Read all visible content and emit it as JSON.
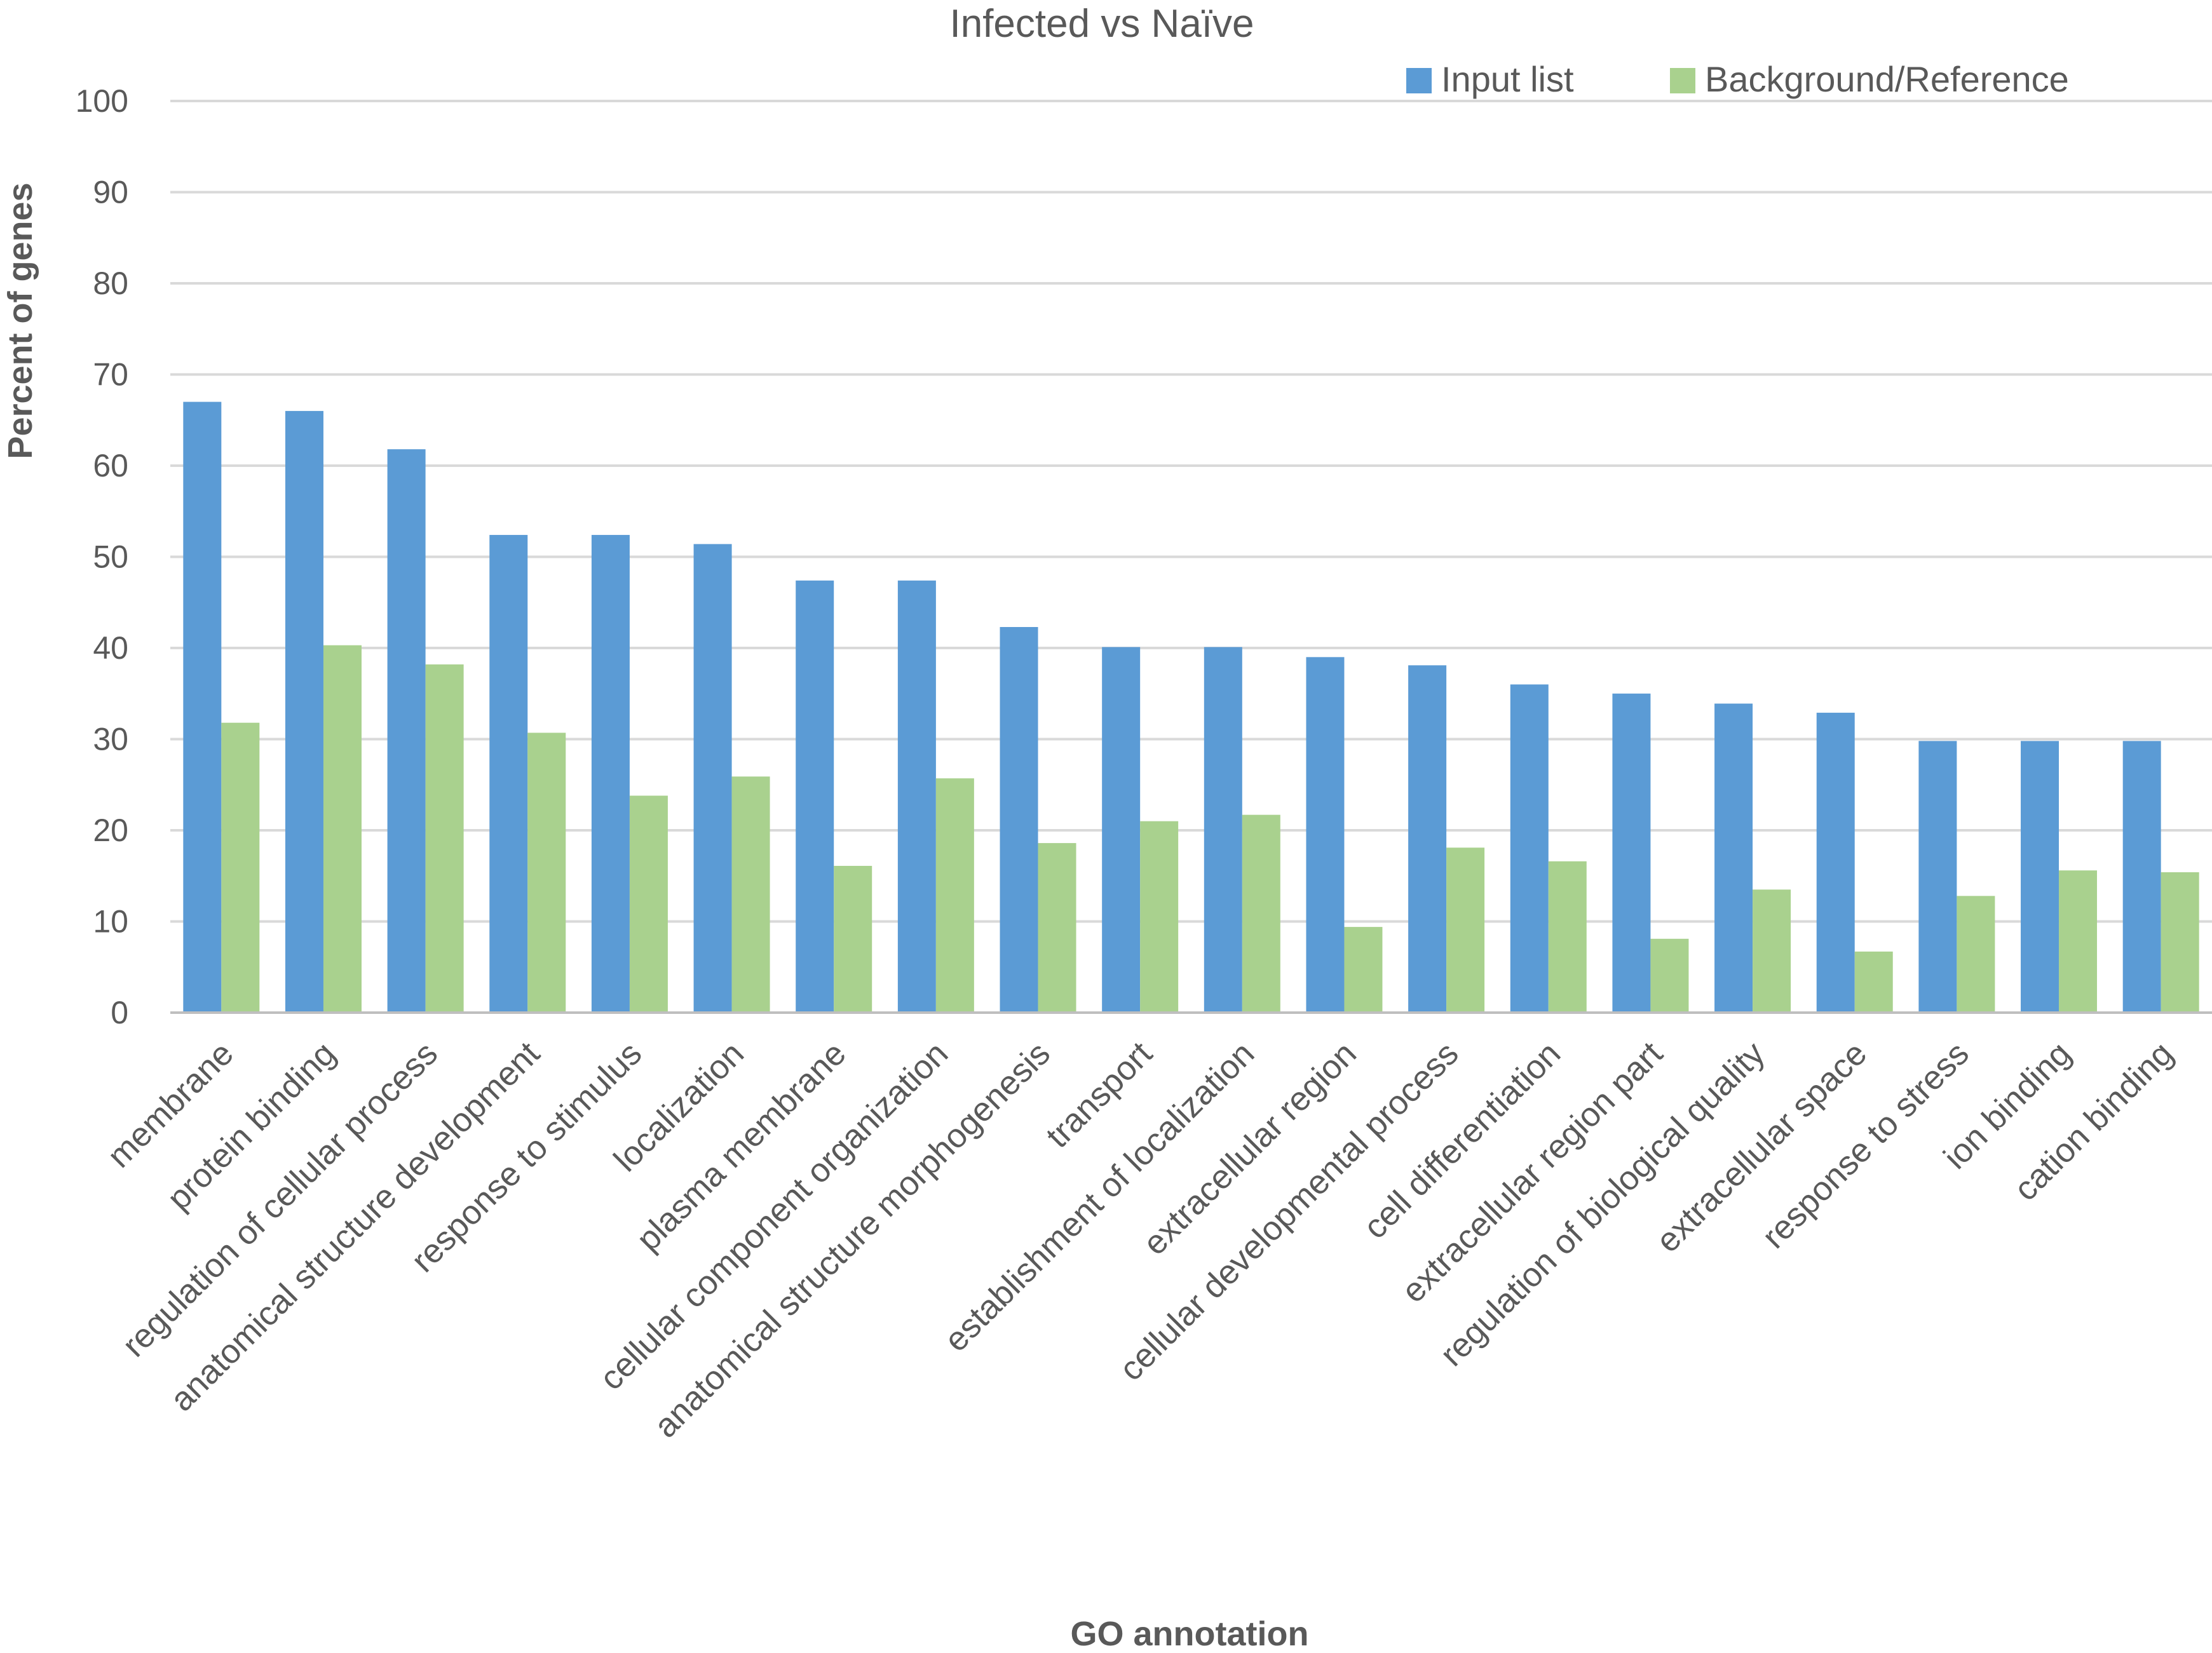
{
  "chart_data": {
    "type": "bar",
    "title": "Infected vs Naïve",
    "xlabel": "GO annotation",
    "ylabel": "Percent of genes",
    "ylim": [
      0,
      100
    ],
    "yticks": [
      0,
      10,
      20,
      30,
      40,
      50,
      60,
      70,
      80,
      90,
      100
    ],
    "grid": true,
    "legend_position": "top-right",
    "categories": [
      "membrane",
      "protein binding",
      "regulation of cellular process",
      "anatomical structure development",
      "response to stimulus",
      "localization",
      "plasma membrane",
      "cellular component organization",
      "anatomical structure morphogenesis",
      "transport",
      "establishment of localization",
      "extracellular region",
      "cellular developmental process",
      "cell differentiation",
      "extracellular region part",
      "regulation of biological quality",
      "extracellular space",
      "response to stress",
      "ion binding",
      "cation binding"
    ],
    "series": [
      {
        "name": "Input list",
        "color": "#5b9bd5",
        "values": [
          67,
          66,
          61.8,
          52.4,
          52.4,
          51.4,
          47.4,
          47.4,
          42.3,
          40.1,
          40.1,
          39,
          38.1,
          36,
          35,
          33.9,
          32.9,
          29.8,
          29.8,
          29.8
        ]
      },
      {
        "name": "Background/Reference",
        "color": "#a9d18e",
        "values": [
          31.8,
          40.3,
          38.2,
          30.7,
          23.8,
          25.9,
          16.1,
          25.7,
          18.6,
          21,
          21.7,
          9.4,
          18.1,
          16.6,
          8.1,
          13.5,
          6.7,
          12.8,
          15.6,
          15.4
        ]
      }
    ]
  }
}
